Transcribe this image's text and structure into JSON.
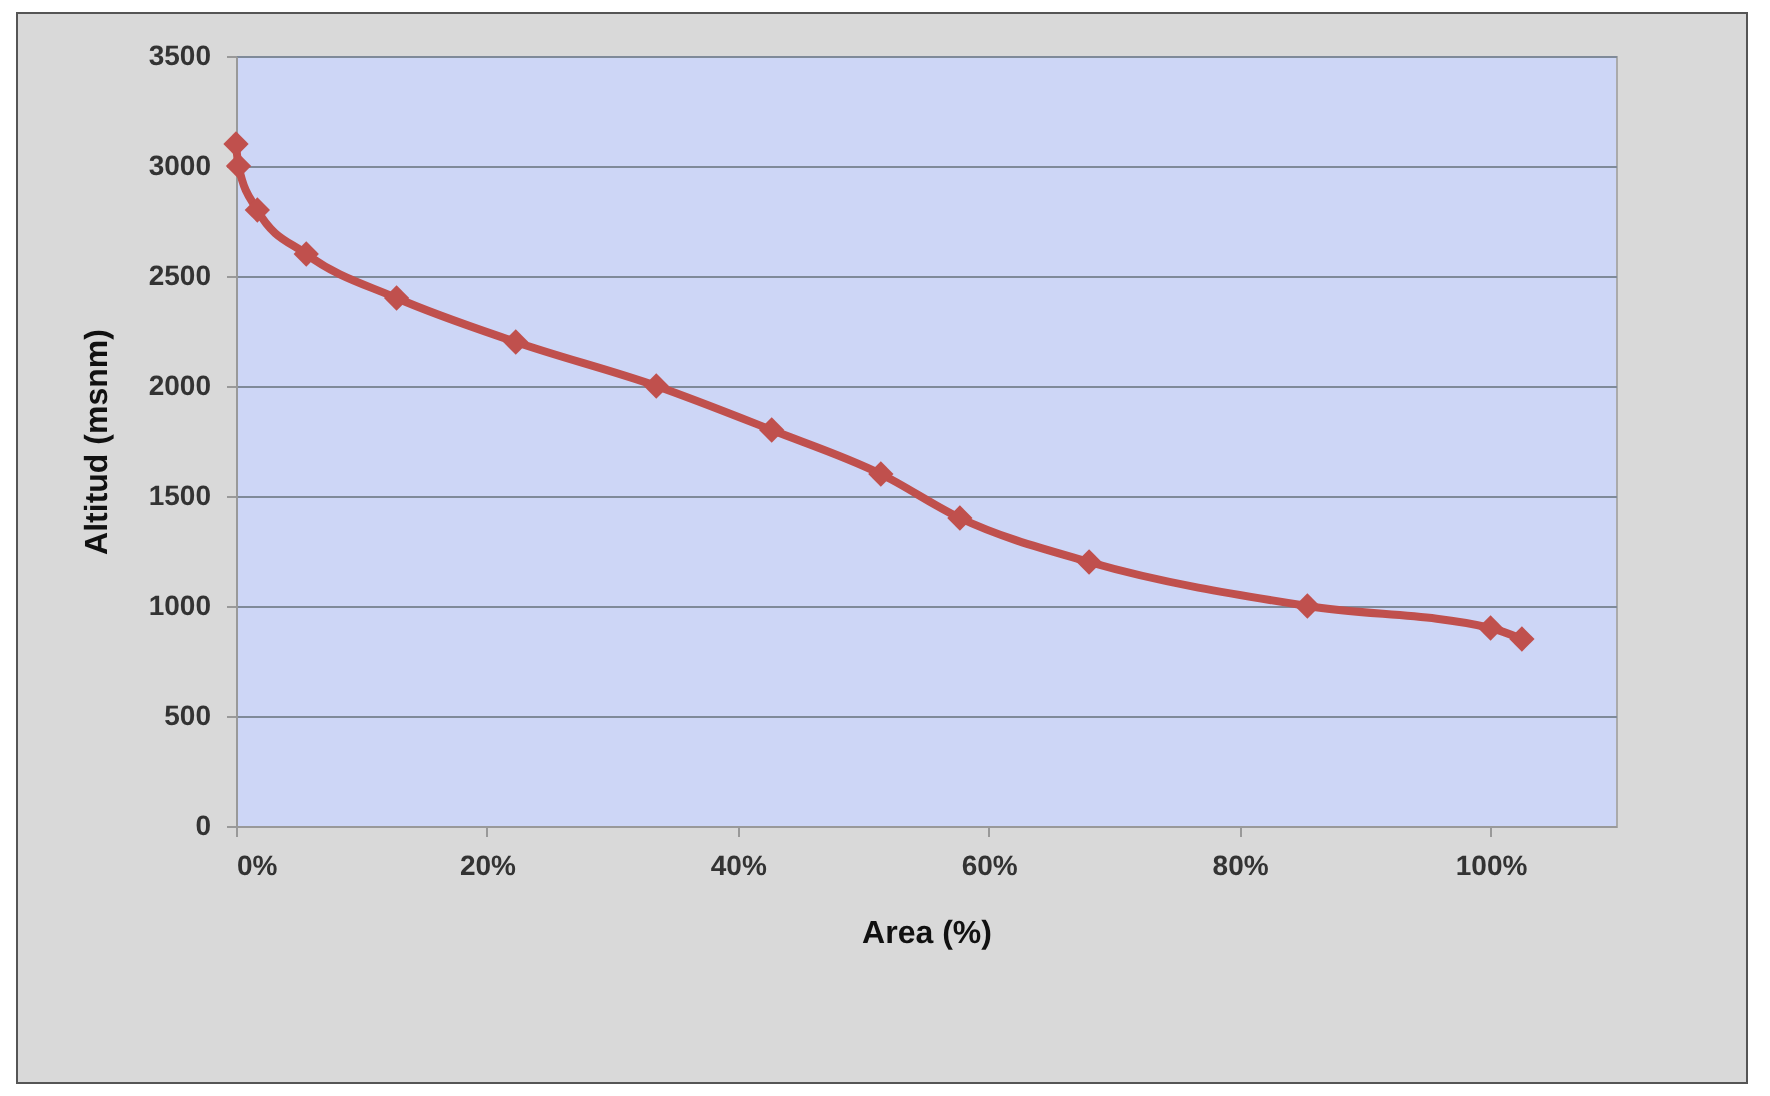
{
  "chart_data": {
    "type": "line",
    "xlabel": "Area (%)",
    "ylabel": "Altitud (msnm)",
    "x": [
      0,
      0.2,
      1.7,
      5.6,
      12.8,
      22.3,
      33.5,
      42.7,
      51.4,
      57.7,
      68,
      85.4,
      100,
      102.5
    ],
    "series": [
      {
        "color": "#c0504d",
        "values": [
          3100,
          3000,
          2800,
          2600,
          2400,
          2200,
          2000,
          1800,
          1600,
          1400,
          1200,
          1000,
          900,
          850
        ]
      }
    ],
    "xlim": [
      0,
      110
    ],
    "xticks": [
      {
        "value": 0,
        "label": "0%"
      },
      {
        "value": 20,
        "label": "20%"
      },
      {
        "value": 40,
        "label": "40%"
      },
      {
        "value": 60,
        "label": "60%"
      },
      {
        "value": 80,
        "label": "80%"
      },
      {
        "value": 100,
        "label": "100%"
      }
    ],
    "ylim": [
      0,
      3500
    ],
    "yticks": [
      0,
      500,
      1000,
      1500,
      2000,
      2500,
      3000,
      3500
    ],
    "grid": "y",
    "marker": "diamond",
    "line_style": "solid"
  }
}
